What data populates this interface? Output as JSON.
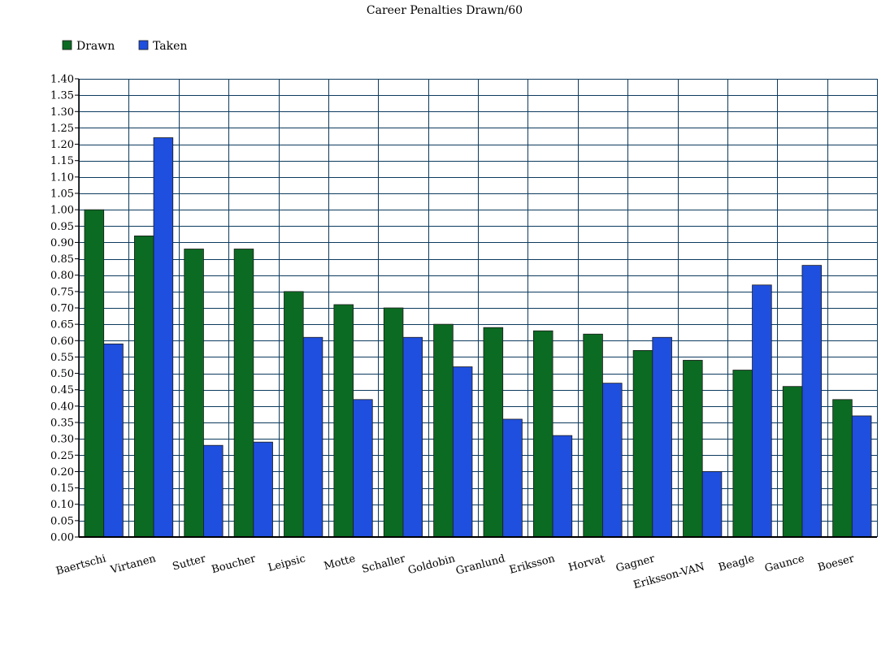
{
  "chart_data": {
    "type": "bar",
    "title": "Career Penalties Drawn/60",
    "xlabel": "",
    "ylabel": "",
    "ylim": [
      0,
      1.4
    ],
    "ytick_step": 0.05,
    "grid": true,
    "legend_position": "top-left",
    "categories": [
      "Baertschi",
      "Virtanen",
      "Sutter",
      "Boucher",
      "Leipsic",
      "Motte",
      "Schaller",
      "Goldobin",
      "Granlund",
      "Eriksson",
      "Horvat",
      "Gagner",
      "Eriksson-VAN",
      "Beagle",
      "Gaunce",
      "Boeser"
    ],
    "series": [
      {
        "name": "Drawn",
        "color": "#0b6b22",
        "values": [
          1.0,
          0.92,
          0.88,
          0.88,
          0.75,
          0.71,
          0.7,
          0.65,
          0.64,
          0.63,
          0.62,
          0.57,
          0.54,
          0.51,
          0.46,
          0.42
        ]
      },
      {
        "name": "Taken",
        "color": "#1f4fdf",
        "values": [
          0.59,
          1.22,
          0.28,
          0.29,
          0.61,
          0.42,
          0.61,
          0.52,
          0.36,
          0.31,
          0.47,
          0.61,
          0.2,
          0.77,
          0.83,
          0.37
        ]
      }
    ]
  },
  "colors": {
    "grid": "#0d3b5e",
    "axis": "#000000",
    "bar_stroke": "#1a1a1a"
  }
}
